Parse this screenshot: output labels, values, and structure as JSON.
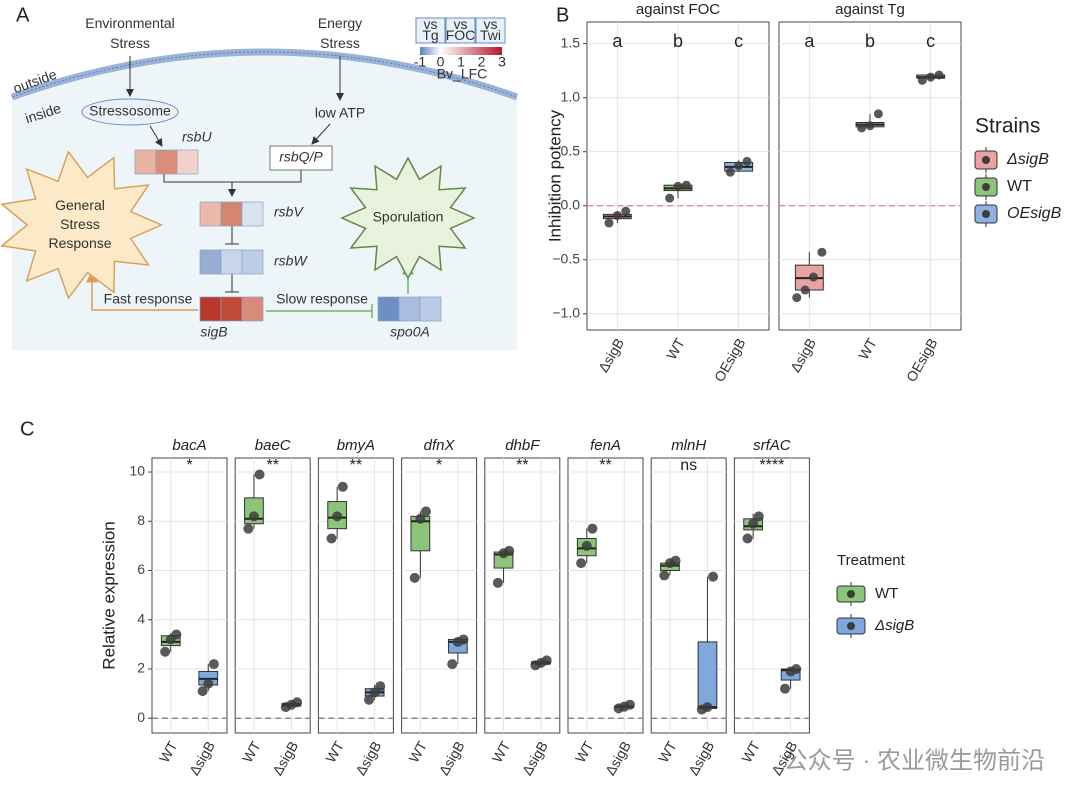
{
  "panel_labels": [
    "A",
    "B",
    "C"
  ],
  "diagram": {
    "environmental_stress": [
      "Environmental",
      "Stress"
    ],
    "energy_stress": [
      "Energy",
      "Stress"
    ],
    "outside": "outside",
    "inside": "inside",
    "stressosome": "Stressosome",
    "low_atp": "low ATP",
    "rsbU": "rsbU",
    "rsbQP": "rsbQ/P",
    "rsbV": "rsbV",
    "rsbW": "rsbW",
    "sigB": "sigB",
    "spo0A": "spo0A",
    "general_stress_response": [
      "General",
      "Stress",
      "Response"
    ],
    "sporulation": "Sporulation",
    "fast_response": "Fast response",
    "slow_response": "Slow response",
    "heatmap_legend": {
      "columns": [
        [
          "vs",
          "Tg"
        ],
        [
          "vs",
          "FOC"
        ],
        [
          "vs",
          "Twi"
        ]
      ],
      "ticks": [
        -1,
        0,
        1,
        2,
        3
      ],
      "title": "Bv_LFC",
      "colors": [
        "#5a7fbf",
        "#ffffff",
        "#b2182b"
      ]
    },
    "heatmap": {
      "rsbU": [
        "#e8b4a4",
        "#dc8e7c",
        "#f1d2c8"
      ],
      "rsbV": [
        "#eab9ab",
        "#d58670",
        "#d9e2f0"
      ],
      "rsbW": [
        "#97aed2",
        "#c9d6ea",
        "#bccde6"
      ],
      "sigB": [
        "#b8392c",
        "#c0493a",
        "#d98a78"
      ],
      "spo0A": [
        "#6d8fc4",
        "#a8bde0",
        "#b9cbe6"
      ]
    }
  },
  "chart_data": [
    {
      "type": "box",
      "ylabel": "Inhibition potency",
      "categories": [
        "ΔsigB",
        "WT",
        "OEsigB"
      ],
      "ylim": [
        -1.15,
        1.7
      ],
      "yticks": [
        {
          "value": -1.0,
          "label": "−1.0"
        },
        {
          "value": -0.5,
          "label": "−0.5"
        },
        {
          "value": 0.0,
          "label": "0.0"
        },
        {
          "value": 0.5,
          "label": "0.5"
        },
        {
          "value": 1.0,
          "label": "1.0"
        },
        {
          "value": 1.5,
          "label": "1.5"
        }
      ],
      "grid": true,
      "hline": 0,
      "hline_color": "#e88080",
      "legend": {
        "title": "Strains",
        "position": "right",
        "entries": [
          {
            "name": "ΔsigB",
            "color": "#e8a3a0",
            "italic": true
          },
          {
            "name": "WT",
            "color": "#8cc57a",
            "italic": false
          },
          {
            "name": "OEsigB",
            "color": "#8fb1e3",
            "italic": true
          }
        ]
      },
      "facets": [
        {
          "title": "against FOC",
          "annotations": [
            "a",
            "b",
            "c"
          ],
          "boxes": [
            {
              "min": -0.16,
              "q1": -0.12,
              "median": -0.1,
              "q3": -0.08,
              "max": -0.05,
              "points": [
                -0.16,
                -0.09,
                -0.05
              ]
            },
            {
              "min": 0.07,
              "q1": 0.14,
              "median": 0.16,
              "q3": 0.19,
              "max": 0.19,
              "points": [
                0.07,
                0.18,
                0.19
              ]
            },
            {
              "min": 0.31,
              "q1": 0.32,
              "median": 0.36,
              "q3": 0.4,
              "max": 0.42,
              "points": [
                0.31,
                0.37,
                0.41
              ]
            }
          ]
        },
        {
          "title": "against Tg",
          "annotations": [
            "a",
            "b",
            "c"
          ],
          "boxes": [
            {
              "min": -0.85,
              "q1": -0.78,
              "median": -0.67,
              "q3": -0.55,
              "max": -0.43,
              "points": [
                -0.85,
                -0.78,
                -0.66,
                -0.43
              ]
            },
            {
              "min": 0.72,
              "q1": 0.73,
              "median": 0.75,
              "q3": 0.77,
              "max": 0.85,
              "points": [
                0.72,
                0.74,
                0.85
              ]
            },
            {
              "min": 1.16,
              "q1": 1.18,
              "median": 1.19,
              "q3": 1.21,
              "max": 1.21,
              "points": [
                1.16,
                1.19,
                1.21
              ]
            }
          ]
        }
      ]
    },
    {
      "type": "box",
      "ylabel": "Relative expression",
      "categories": [
        "WT",
        "ΔsigB"
      ],
      "ylim": [
        -0.6,
        10.57
      ],
      "yticks": [
        0,
        2,
        4,
        6,
        8,
        10
      ],
      "grid": true,
      "hline": 0,
      "hline_color": "#777777",
      "legend": {
        "title": "Treatment",
        "position": "right",
        "entries": [
          {
            "name": "WT",
            "color": "#8cc57a",
            "italic": false
          },
          {
            "name": "ΔsigB",
            "color": "#7fa8dd",
            "italic": true
          }
        ]
      },
      "facets": [
        {
          "title": "bacA",
          "annotation": "*",
          "boxes": [
            {
              "min": 2.7,
              "q1": 2.95,
              "median": 3.1,
              "q3": 3.35,
              "max": 3.45,
              "points": [
                2.7,
                3.2,
                3.4
              ]
            },
            {
              "min": 1.1,
              "q1": 1.35,
              "median": 1.6,
              "q3": 1.9,
              "max": 2.2,
              "points": [
                1.1,
                1.4,
                2.2
              ]
            }
          ]
        },
        {
          "title": "baeC",
          "annotation": "**",
          "boxes": [
            {
              "min": 7.7,
              "q1": 7.9,
              "median": 8.1,
              "q3": 8.95,
              "max": 9.9,
              "points": [
                7.7,
                8.2,
                9.9
              ]
            },
            {
              "min": 0.45,
              "q1": 0.5,
              "median": 0.55,
              "q3": 0.6,
              "max": 0.65,
              "points": [
                0.45,
                0.55,
                0.65
              ]
            }
          ]
        },
        {
          "title": "bmyA",
          "annotation": "**",
          "boxes": [
            {
              "min": 7.3,
              "q1": 7.7,
              "median": 8.15,
              "q3": 8.8,
              "max": 9.4,
              "points": [
                7.3,
                8.2,
                9.4
              ]
            },
            {
              "min": 0.75,
              "q1": 0.9,
              "median": 1.05,
              "q3": 1.2,
              "max": 1.35,
              "points": [
                0.75,
                1.05,
                1.3
              ]
            }
          ]
        },
        {
          "title": "dfnX",
          "annotation": "*",
          "boxes": [
            {
              "min": 5.7,
              "q1": 6.8,
              "median": 8.0,
              "q3": 8.2,
              "max": 8.4,
              "points": [
                5.7,
                8.1,
                8.4
              ]
            },
            {
              "min": 2.2,
              "q1": 2.65,
              "median": 3.1,
              "q3": 3.2,
              "max": 3.25,
              "points": [
                2.2,
                3.1,
                3.2
              ]
            }
          ]
        },
        {
          "title": "dhbF",
          "annotation": "**",
          "boxes": [
            {
              "min": 5.5,
              "q1": 6.1,
              "median": 6.65,
              "q3": 6.75,
              "max": 6.8,
              "points": [
                5.5,
                6.7,
                6.8
              ]
            },
            {
              "min": 2.15,
              "q1": 2.2,
              "median": 2.25,
              "q3": 2.3,
              "max": 2.35,
              "points": [
                2.15,
                2.25,
                2.35
              ]
            }
          ]
        },
        {
          "title": "fenA",
          "annotation": "**",
          "boxes": [
            {
              "min": 6.3,
              "q1": 6.6,
              "median": 6.9,
              "q3": 7.3,
              "max": 7.7,
              "points": [
                6.3,
                7.0,
                7.7
              ]
            },
            {
              "min": 0.4,
              "q1": 0.43,
              "median": 0.47,
              "q3": 0.5,
              "max": 0.55,
              "points": [
                0.4,
                0.47,
                0.55
              ]
            }
          ]
        },
        {
          "title": "mlnH",
          "annotation": "ns",
          "boxes": [
            {
              "min": 5.8,
              "q1": 6.0,
              "median": 6.2,
              "q3": 6.3,
              "max": 6.4,
              "points": [
                5.8,
                6.3,
                6.4
              ]
            },
            {
              "min": 0.35,
              "q1": 0.4,
              "median": 0.45,
              "q3": 3.1,
              "max": 5.75,
              "points": [
                0.35,
                0.45,
                5.75
              ]
            }
          ]
        },
        {
          "title": "srfAC",
          "annotation": "****",
          "boxes": [
            {
              "min": 7.3,
              "q1": 7.65,
              "median": 7.8,
              "q3": 8.1,
              "max": 8.3,
              "points": [
                7.3,
                7.9,
                8.2
              ]
            },
            {
              "min": 1.2,
              "q1": 1.55,
              "median": 1.95,
              "q3": 2.0,
              "max": 2.05,
              "points": [
                1.2,
                1.9,
                2.0
              ]
            }
          ]
        }
      ]
    }
  ],
  "watermark": "公众号 · 农业微生物前沿"
}
